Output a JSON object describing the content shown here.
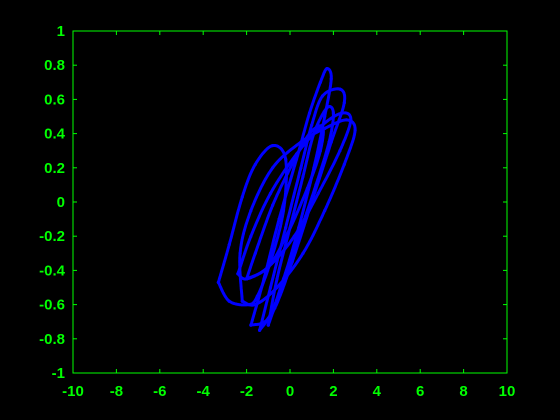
{
  "chart_data": {
    "type": "line",
    "title": "",
    "xlabel": "",
    "ylabel": "",
    "xlim": [
      -10,
      10
    ],
    "ylim": [
      -1,
      1
    ],
    "xticks": [
      -10,
      -8,
      -6,
      -4,
      -2,
      0,
      2,
      4,
      6,
      8,
      10
    ],
    "xtick_labels": [
      "-10",
      "-8",
      "-6",
      "-4",
      "-2",
      "0",
      "2",
      "4",
      "6",
      "8",
      "10"
    ],
    "yticks": [
      -1,
      -0.8,
      -0.6,
      -0.4,
      -0.2,
      0,
      0.2,
      0.4,
      0.6,
      0.8,
      1
    ],
    "ytick_labels": [
      "-1",
      "-0.8",
      "-0.6",
      "-0.4",
      "-0.2",
      "0",
      "0.2",
      "0.4",
      "0.6",
      "0.8",
      "1"
    ],
    "grid": false,
    "legend": "none",
    "colors": {
      "background": "#000000",
      "axes": "#00ff00",
      "series": "#0000ff"
    },
    "series": [
      {
        "style": "dots",
        "loops": [
          [
            [
              -3.3,
              -0.47
            ],
            [
              -2.8,
              -0.25
            ],
            [
              -2.2,
              0.03
            ],
            [
              -1.6,
              0.22
            ],
            [
              -0.8,
              0.33
            ],
            [
              -0.2,
              0.25
            ],
            [
              -0.3,
              -0.05
            ],
            [
              -0.9,
              -0.35
            ],
            [
              -1.5,
              -0.55
            ],
            [
              -1.9,
              -0.6
            ],
            [
              -2.8,
              -0.58
            ],
            [
              -3.3,
              -0.47
            ]
          ],
          [
            [
              -2.2,
              -0.58
            ],
            [
              -2.3,
              -0.3
            ],
            [
              -1.8,
              -0.05
            ],
            [
              -0.8,
              0.2
            ],
            [
              0.5,
              0.35
            ],
            [
              1.6,
              0.43
            ],
            [
              2.6,
              0.48
            ],
            [
              3.0,
              0.42
            ],
            [
              2.5,
              0.22
            ],
            [
              1.6,
              -0.05
            ],
            [
              0.6,
              -0.3
            ],
            [
              -0.6,
              -0.5
            ],
            [
              -1.6,
              -0.6
            ],
            [
              -2.2,
              -0.58
            ]
          ],
          [
            [
              -2.4,
              -0.42
            ],
            [
              -1.8,
              -0.2
            ],
            [
              -0.9,
              0.05
            ],
            [
              0.3,
              0.28
            ],
            [
              1.5,
              0.45
            ],
            [
              2.4,
              0.52
            ],
            [
              2.8,
              0.48
            ],
            [
              2.3,
              0.3
            ],
            [
              1.3,
              0.05
            ],
            [
              0.2,
              -0.2
            ],
            [
              -1.0,
              -0.38
            ],
            [
              -2.0,
              -0.45
            ],
            [
              -2.4,
              -0.42
            ]
          ],
          [
            [
              -1.8,
              -0.72
            ],
            [
              -1.2,
              -0.45
            ],
            [
              -0.5,
              -0.1
            ],
            [
              0.3,
              0.25
            ],
            [
              0.9,
              0.52
            ],
            [
              1.4,
              0.7
            ],
            [
              1.7,
              0.78
            ],
            [
              1.9,
              0.72
            ],
            [
              1.6,
              0.5
            ],
            [
              1.1,
              0.2
            ],
            [
              0.4,
              -0.15
            ],
            [
              -0.3,
              -0.45
            ],
            [
              -1.0,
              -0.68
            ],
            [
              -1.8,
              -0.72
            ]
          ],
          [
            [
              -1.4,
              -0.75
            ],
            [
              -0.9,
              -0.5
            ],
            [
              -0.2,
              -0.15
            ],
            [
              0.5,
              0.2
            ],
            [
              1.0,
              0.45
            ],
            [
              1.5,
              0.62
            ],
            [
              2.3,
              0.66
            ],
            [
              2.5,
              0.58
            ],
            [
              1.9,
              0.35
            ],
            [
              1.0,
              0.0
            ],
            [
              0.1,
              -0.35
            ],
            [
              -0.7,
              -0.62
            ],
            [
              -1.4,
              -0.75
            ]
          ],
          [
            [
              -1.0,
              -0.72
            ],
            [
              -0.6,
              -0.45
            ],
            [
              0.0,
              -0.15
            ],
            [
              0.6,
              0.15
            ],
            [
              1.1,
              0.4
            ],
            [
              1.7,
              0.55
            ],
            [
              2.0,
              0.52
            ],
            [
              1.8,
              0.35
            ],
            [
              1.2,
              0.1
            ],
            [
              0.4,
              -0.2
            ],
            [
              -0.4,
              -0.5
            ],
            [
              -1.0,
              -0.72
            ]
          ],
          [
            [
              -2.0,
              -0.45
            ],
            [
              -1.6,
              -0.3
            ],
            [
              -0.8,
              -0.02
            ],
            [
              0.1,
              0.22
            ],
            [
              0.9,
              0.4
            ],
            [
              1.5,
              0.44
            ],
            [
              1.4,
              0.3
            ],
            [
              0.8,
              0.08
            ],
            [
              -0.1,
              -0.18
            ],
            [
              -1.0,
              -0.38
            ],
            [
              -2.0,
              -0.45
            ]
          ]
        ]
      }
    ]
  }
}
